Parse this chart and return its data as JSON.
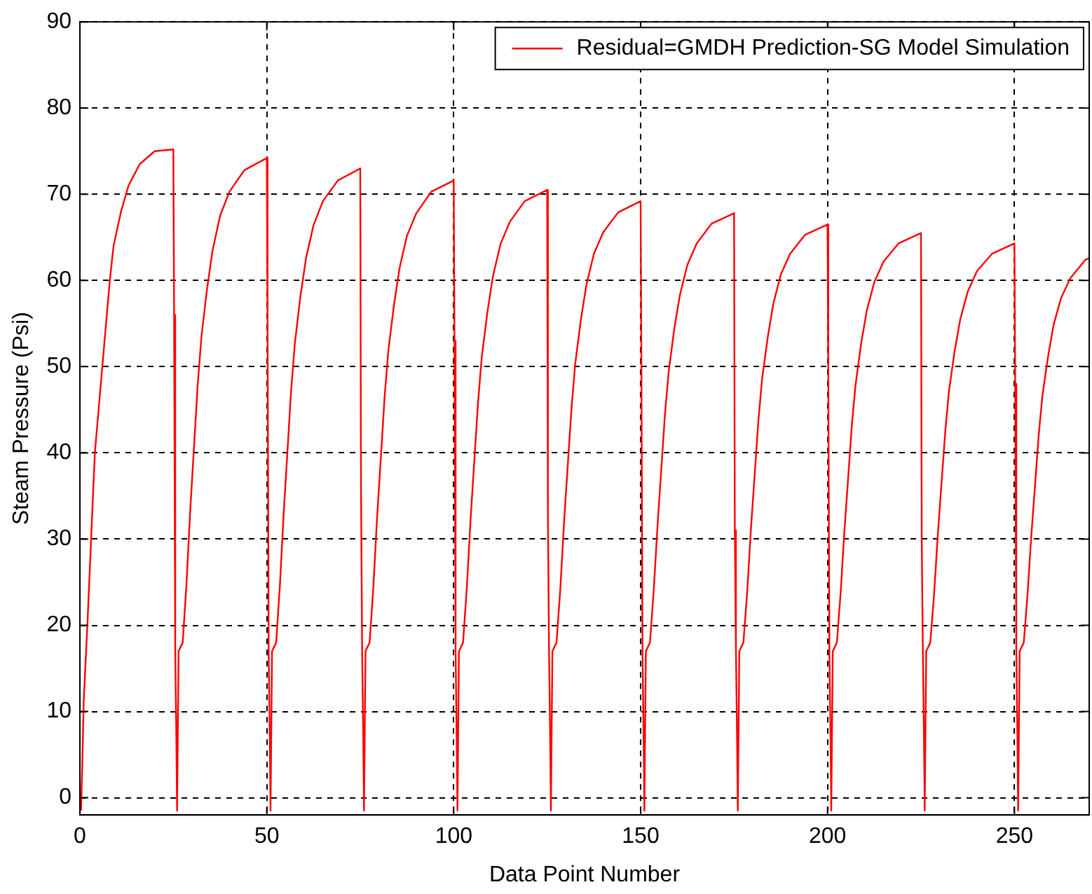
{
  "chart_data": {
    "type": "line",
    "xlabel": "Data Point Number",
    "ylabel": "Steam Pressure (Psi)",
    "xlim": [
      0,
      270
    ],
    "xticks": [
      0,
      50,
      100,
      150,
      200,
      250
    ],
    "ylim": [
      -2,
      90
    ],
    "yticks": [
      0,
      10,
      20,
      30,
      40,
      50,
      60,
      70,
      80,
      90
    ],
    "grid": true,
    "legend": "top right",
    "marker": "none",
    "line_style": "solid",
    "series": [
      {
        "name": "Residual=GMDH Prediction-SG Model Simulation",
        "color": "#ff0000",
        "x": [
          0.3,
          0.6,
          1,
          2,
          3,
          4,
          5,
          6,
          7,
          8,
          9,
          11,
          13,
          16,
          20,
          25,
          25.2,
          25.5,
          25.8,
          26,
          26.4,
          27.5,
          28.5,
          29.5,
          30.5,
          31.5,
          32.5,
          34,
          35.5,
          37.5,
          40,
          44,
          50,
          50.2,
          50.5,
          50.8,
          51,
          51.4,
          52.5,
          53.5,
          54.5,
          55.5,
          56.5,
          57.5,
          59,
          60.5,
          62.5,
          65,
          69,
          75,
          75.2,
          75.5,
          75.8,
          76,
          76.4,
          77.5,
          78.5,
          79.5,
          80.5,
          81.5,
          82.5,
          84,
          85.5,
          87.5,
          90,
          94,
          100,
          100.2,
          100.5,
          100.8,
          101,
          101.4,
          102.5,
          103.5,
          104.5,
          105.5,
          106.5,
          107.5,
          109,
          110.5,
          112.5,
          115,
          119,
          125,
          125.2,
          125.5,
          125.8,
          126,
          126.4,
          127.5,
          128.5,
          129.5,
          130.5,
          131.5,
          132.5,
          134,
          135.5,
          137.5,
          140,
          144,
          150,
          150.2,
          150.5,
          150.8,
          151,
          151.4,
          152.5,
          153.5,
          154.5,
          155.5,
          156.5,
          157.5,
          159,
          160.5,
          162.5,
          165,
          169,
          175,
          175.2,
          175.5,
          175.8,
          176,
          176.4,
          177.5,
          178.5,
          179.5,
          180.5,
          181.5,
          182.5,
          184,
          185.5,
          187.5,
          190,
          194,
          200,
          200.2,
          200.5,
          200.8,
          201,
          201.4,
          202.5,
          203.5,
          204.5,
          205.5,
          206.5,
          207.5,
          209,
          210.5,
          212.5,
          215,
          219,
          225,
          225.2,
          225.5,
          225.8,
          226,
          226.4,
          227.5,
          228.5,
          229.5,
          230.5,
          231.5,
          232.5,
          234,
          235.5,
          237.5,
          240,
          244,
          250,
          250.2,
          250.5,
          250.8,
          251,
          251.4,
          252.5,
          253.5,
          254.5,
          255.5,
          256.5,
          257.5,
          259,
          260.5,
          262.5,
          265,
          269,
          270
        ],
        "values": [
          -1.5,
          3,
          11,
          20,
          30,
          40,
          45,
          50,
          55,
          60,
          64,
          68,
          71,
          73.5,
          75,
          75.2,
          56,
          17,
          7,
          -1.5,
          17,
          18,
          24.7,
          33.2,
          40.5,
          47.8,
          53.4,
          59.0,
          63.5,
          67.5,
          70.3,
          72.8,
          74.2,
          55,
          17,
          7,
          -1.5,
          17,
          18,
          24.6,
          32.9,
          40.0,
          47.2,
          52.7,
          58.2,
          62.6,
          66.4,
          69.2,
          71.6,
          73.0,
          36,
          17,
          7,
          -1.5,
          17,
          18,
          24.4,
          32.5,
          39.4,
          46.4,
          51.8,
          57.1,
          61.4,
          65.2,
          67.8,
          70.3,
          71.6,
          53,
          17,
          7,
          -1.5,
          17,
          18,
          24.3,
          32.2,
          39.0,
          45.8,
          51.1,
          56.3,
          60.5,
          64.2,
          66.8,
          69.2,
          70.5,
          33,
          17,
          7,
          -1.5,
          17,
          18,
          24.1,
          31.8,
          38.5,
          45.1,
          50.3,
          55.4,
          59.5,
          63.1,
          65.6,
          67.9,
          69.2,
          51,
          17,
          7,
          -1.5,
          17,
          18,
          24.0,
          31.4,
          37.9,
          44.4,
          49.4,
          54.4,
          58.3,
          61.8,
          64.3,
          66.6,
          67.8,
          31,
          17,
          7,
          -1.5,
          17,
          18,
          23.8,
          31.1,
          37.4,
          43.7,
          48.6,
          53.4,
          57.3,
          60.7,
          63.1,
          65.3,
          66.5,
          50,
          17,
          7,
          -1.5,
          17,
          18,
          23.7,
          30.8,
          37.0,
          43.2,
          47.9,
          52.7,
          56.5,
          59.8,
          62.2,
          64.3,
          65.5,
          30,
          17,
          7,
          -1.5,
          17,
          18,
          23.6,
          30.5,
          36.5,
          42.5,
          47.2,
          51.8,
          55.5,
          58.7,
          61.1,
          63.1,
          64.3,
          48,
          17,
          7,
          -1.5,
          17,
          18,
          23.5,
          30.3,
          36.2,
          42.1,
          46.7,
          51.2,
          54.9,
          58.0,
          60.3,
          62.4,
          62.6
        ]
      }
    ]
  }
}
